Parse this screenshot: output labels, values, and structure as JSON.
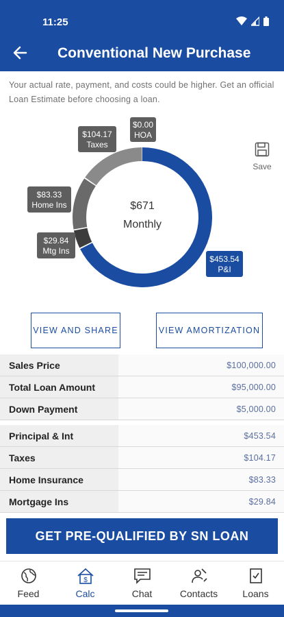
{
  "status": {
    "time": "11:25"
  },
  "appbar": {
    "title": "Conventional New Purchase"
  },
  "disclaimer": "Your actual rate, payment, and costs could be higher. Get an official Loan Estimate before choosing a loan.",
  "chart_data": {
    "type": "pie",
    "center_value": "$671",
    "center_label": "Monthly",
    "slices": [
      {
        "name": "P&I",
        "amount_label": "$453.54",
        "value": 453.54,
        "color": "#1a4da1"
      },
      {
        "name": "Mtg Ins",
        "amount_label": "$29.84",
        "value": 29.84,
        "color": "#3c3c3c"
      },
      {
        "name": "Home Ins",
        "amount_label": "$83.33",
        "value": 83.33,
        "color": "#6a6a6a"
      },
      {
        "name": "Taxes",
        "amount_label": "$104.17",
        "value": 104.17,
        "color": "#8a8a8a"
      },
      {
        "name": "HOA",
        "amount_label": "$0.00",
        "value": 0,
        "color": "#888888"
      }
    ]
  },
  "save": {
    "label": "Save"
  },
  "buttons": {
    "share": "VIEW AND SHARE",
    "amortization": "VIEW AMORTIZATION"
  },
  "loan_rows": [
    {
      "label": "Sales Price",
      "value": "$100,000.00"
    },
    {
      "label": "Total Loan Amount",
      "value": "$95,000.00"
    },
    {
      "label": "Down Payment",
      "value": "$5,000.00"
    }
  ],
  "payment_rows": [
    {
      "label": "Principal & Int",
      "value": "$453.54"
    },
    {
      "label": "Taxes",
      "value": "$104.17"
    },
    {
      "label": "Home Insurance",
      "value": "$83.33"
    },
    {
      "label": "Mortgage Ins",
      "value": "$29.84"
    }
  ],
  "cta": "GET PRE-QUALIFIED BY SN LOAN",
  "nav": [
    {
      "label": "Feed",
      "icon": "globe-icon",
      "active": false
    },
    {
      "label": "Calc",
      "icon": "calc-home-icon",
      "active": true
    },
    {
      "label": "Chat",
      "icon": "chat-icon",
      "active": false
    },
    {
      "label": "Contacts",
      "icon": "contacts-icon",
      "active": false
    },
    {
      "label": "Loans",
      "icon": "loans-icon",
      "active": false
    }
  ],
  "colors": {
    "brand": "#1a4da1",
    "label_box": "#5e5e5e",
    "label_box_active": "#1a4da1"
  }
}
